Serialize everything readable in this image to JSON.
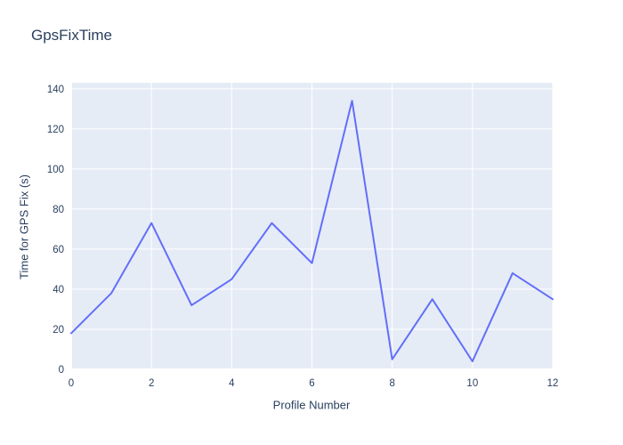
{
  "page": {
    "title": "GpsFixTime"
  },
  "chart_data": {
    "type": "line",
    "title": "GpsFixTime",
    "xlabel": "Profile Number",
    "ylabel": "Time for GPS Fix (s)",
    "x": [
      0,
      1,
      2,
      3,
      4,
      5,
      6,
      7,
      8,
      9,
      10,
      11,
      12
    ],
    "values": [
      18,
      38,
      73,
      32,
      45,
      73,
      53,
      134,
      5,
      35,
      4,
      48,
      35
    ],
    "xticks": [
      0,
      2,
      4,
      6,
      8,
      10,
      12
    ],
    "yticks": [
      0,
      20,
      40,
      60,
      80,
      100,
      120,
      140
    ],
    "xlim": [
      0,
      12
    ],
    "ylim": [
      0,
      143
    ],
    "grid": true,
    "legend": "none",
    "line_color": "#636efa",
    "plot_bg_color": "#e5ecf6",
    "grid_color": "#ffffff",
    "text_color": "#2a3f5f"
  }
}
